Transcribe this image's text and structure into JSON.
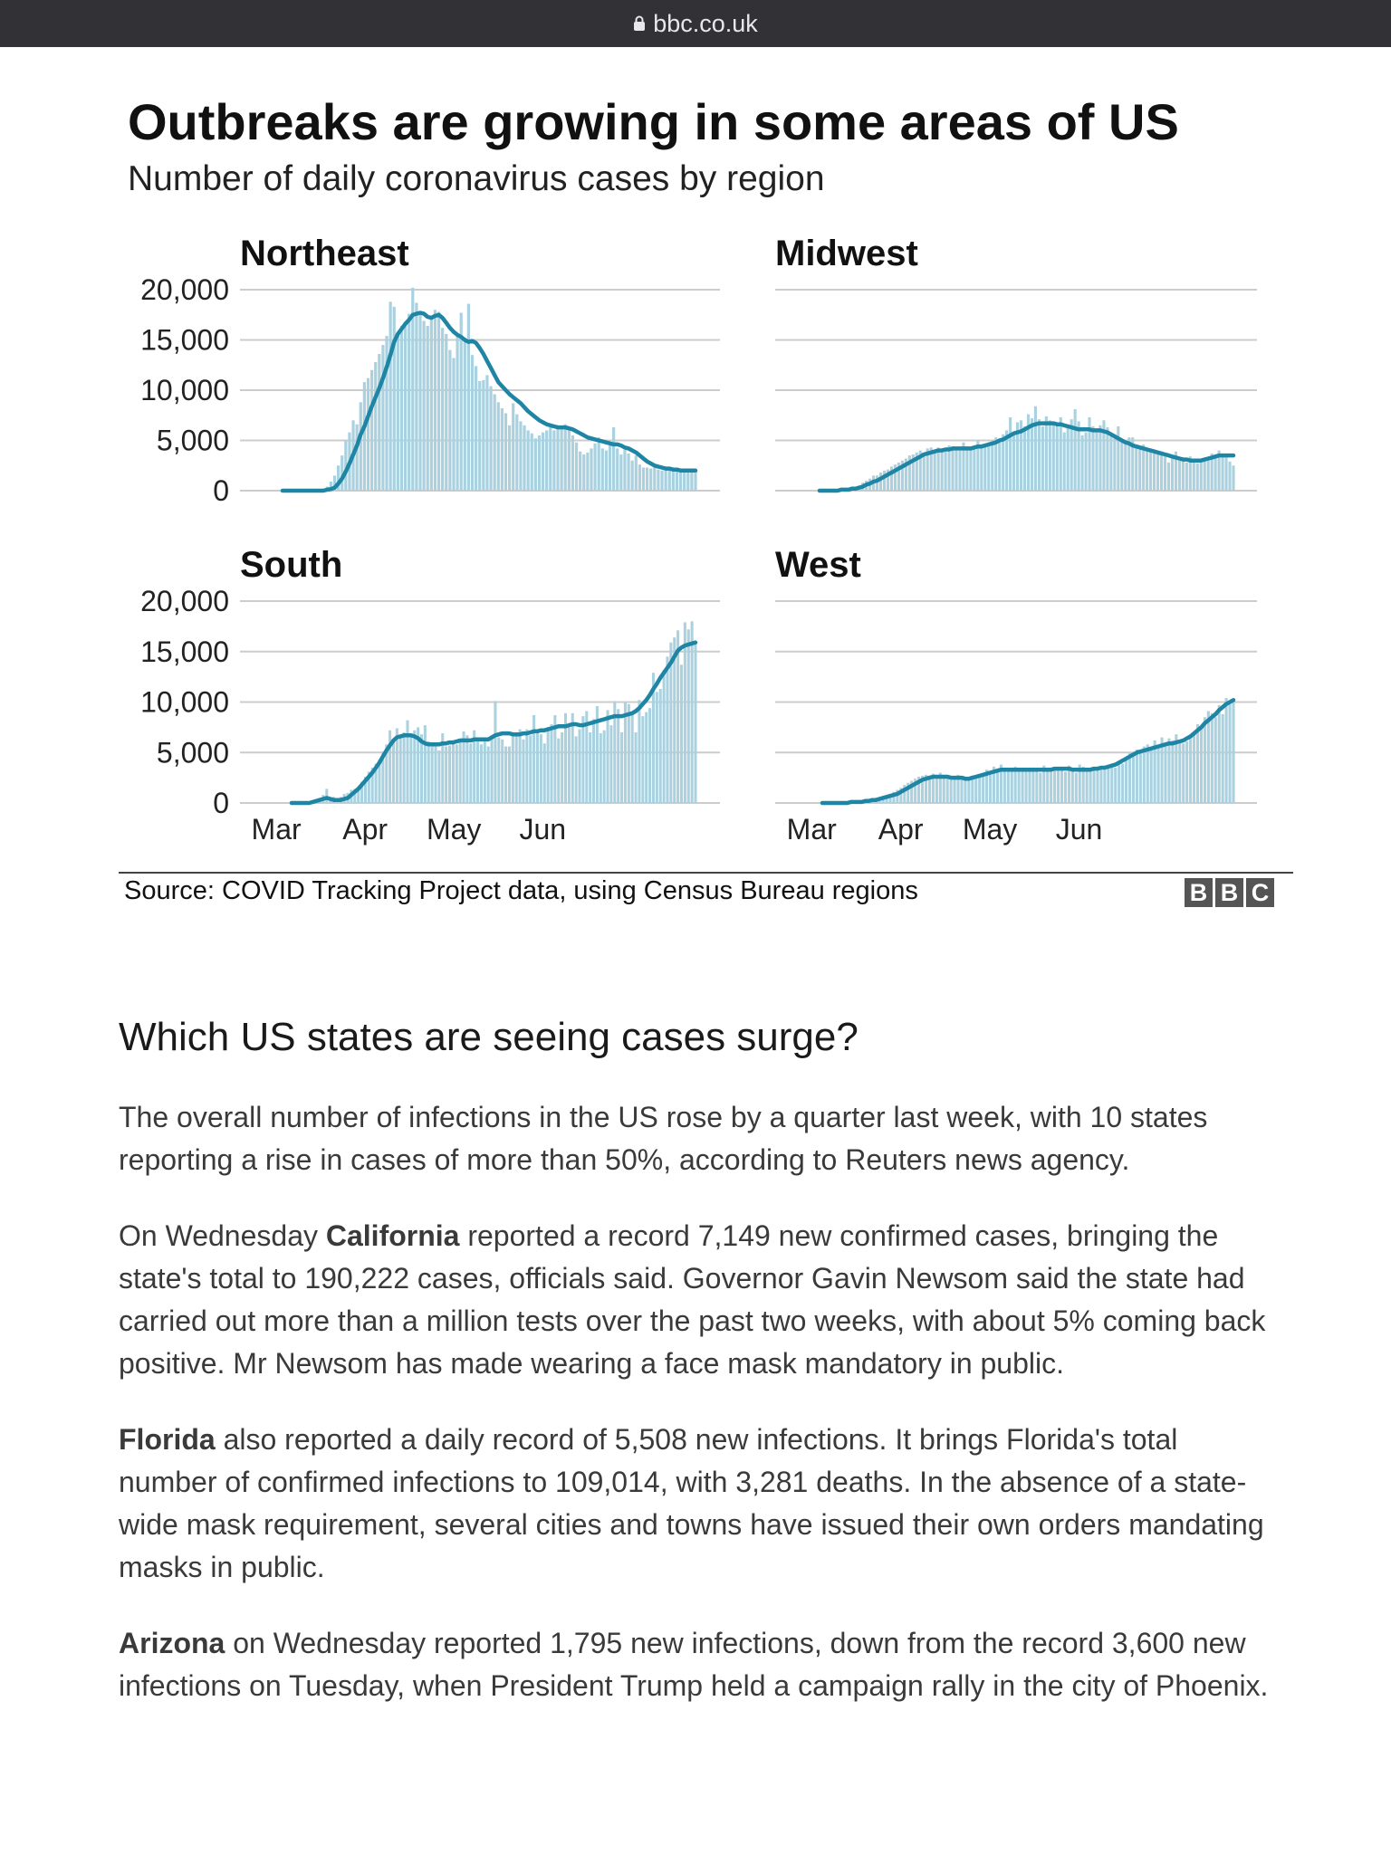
{
  "browser": {
    "url": "bbc.co.uk",
    "lock_icon": "lock-icon"
  },
  "figure": {
    "title": "Outbreaks are growing in some areas of US",
    "subtitle": "Number of daily coronavirus cases by region",
    "source": "Source: COVID Tracking Project data, using Census Bureau regions",
    "logo_letters": [
      "B",
      "B",
      "C"
    ]
  },
  "colors": {
    "bar": "#a9d1df",
    "line": "#1f85a4",
    "grid": "#cccccc",
    "text": "#222222"
  },
  "chart_data": [
    {
      "type": "bar",
      "title": "Northeast",
      "xlabel": "",
      "ylabel": "",
      "ylim": [
        0,
        20000
      ],
      "yticks": [
        "20,000",
        "15,000",
        "10,000",
        "5,000",
        "0"
      ],
      "x_ticks": [],
      "grid": true,
      "series": [
        {
          "kind": "daily bars",
          "values": [
            0,
            0,
            0,
            0,
            0,
            0,
            0,
            0,
            0,
            0,
            100,
            200,
            400,
            900,
            1500,
            2500,
            3500,
            5000,
            5800,
            7000,
            6600,
            8800,
            10800,
            11200,
            12000,
            12800,
            13600,
            14500,
            15400,
            18800,
            18300,
            15500,
            16400,
            16800,
            17600,
            20200,
            18700,
            17800,
            16900,
            16400,
            17100,
            18000,
            17800,
            16200,
            15600,
            14000,
            13200,
            15400,
            17700,
            15200,
            18600,
            13500,
            12400,
            10900,
            11000,
            11500,
            10400,
            9600,
            8800,
            8200,
            7700,
            6500,
            8700,
            7600,
            6900,
            6500,
            6000,
            5700,
            5200,
            5500,
            5800,
            6000,
            6300,
            6000,
            6300,
            6100,
            6600,
            6100,
            5500,
            4800,
            3900,
            3600,
            3800,
            4200,
            4700,
            5300,
            4200,
            4000,
            4500,
            6300,
            4200,
            3600,
            4100,
            3700,
            3000,
            3500,
            2600,
            2300,
            2300,
            2200,
            2300,
            2100,
            2000,
            2100,
            2100,
            2000,
            1900,
            1900,
            2000,
            1800,
            2000,
            2100
          ]
        },
        {
          "kind": "7-day average",
          "values": [
            0,
            0,
            0,
            0,
            0,
            0,
            0,
            0,
            0,
            0,
            0,
            0,
            100,
            150,
            300,
            700,
            1200,
            1900,
            2700,
            3600,
            4500,
            5600,
            6400,
            7400,
            8400,
            9300,
            10200,
            11200,
            12300,
            13500,
            14800,
            15600,
            16100,
            16600,
            17000,
            17500,
            17600,
            17700,
            17600,
            17300,
            17200,
            17400,
            17500,
            17200,
            16700,
            16200,
            15800,
            15500,
            15300,
            15000,
            14800,
            14900,
            14700,
            14200,
            13600,
            12900,
            12200,
            11500,
            10800,
            10400,
            10000,
            9600,
            9300,
            9000,
            8700,
            8300,
            7900,
            7600,
            7300,
            7000,
            6800,
            6600,
            6500,
            6400,
            6300,
            6300,
            6300,
            6200,
            6100,
            5900,
            5700,
            5500,
            5300,
            5200,
            5100,
            5000,
            4900,
            4800,
            4700,
            4600,
            4600,
            4500,
            4300,
            4200,
            4000,
            3800,
            3500,
            3200,
            2900,
            2700,
            2500,
            2400,
            2300,
            2200,
            2200,
            2100,
            2100,
            2000,
            2000,
            2000,
            2000,
            2000
          ]
        }
      ]
    },
    {
      "type": "bar",
      "title": "Midwest",
      "xlabel": "",
      "ylabel": "",
      "ylim": [
        0,
        20000
      ],
      "x_ticks": [],
      "grid": true,
      "series": [
        {
          "kind": "daily bars",
          "values": [
            0,
            0,
            0,
            0,
            0,
            100,
            100,
            200,
            300,
            400,
            300,
            500,
            800,
            1000,
            1200,
            1500,
            1500,
            1800,
            2000,
            2100,
            2400,
            2600,
            2800,
            3000,
            3200,
            3500,
            3600,
            3800,
            4000,
            3800,
            4200,
            4300,
            4100,
            4300,
            4200,
            3900,
            4500,
            4400,
            4300,
            4000,
            4800,
            4400,
            4300,
            4100,
            5000,
            4600,
            4500,
            4700,
            4800,
            5300,
            5100,
            5600,
            6000,
            7300,
            5600,
            6800,
            7000,
            6400,
            7600,
            7200,
            8400,
            7100,
            6400,
            7400,
            7000,
            6600,
            6800,
            7300,
            5800,
            6600,
            7100,
            8100,
            6900,
            5500,
            5800,
            7300,
            6400,
            6100,
            6500,
            7000,
            6300,
            5800,
            5600,
            6400,
            5100,
            4900,
            5300,
            5300,
            4400,
            4100,
            4600,
            4000,
            4100,
            3800,
            3600,
            3900,
            3400,
            2800,
            3500,
            3900,
            3000,
            3300,
            2800,
            3400,
            3100,
            2700,
            3000,
            3000,
            3200,
            3700,
            3300,
            4000,
            3700,
            3300,
            2900,
            2500
          ]
        },
        {
          "kind": "7-day average",
          "values": [
            0,
            0,
            0,
            0,
            0,
            0,
            100,
            100,
            100,
            200,
            200,
            300,
            400,
            600,
            700,
            900,
            1000,
            1200,
            1400,
            1600,
            1800,
            2000,
            2200,
            2400,
            2600,
            2800,
            3000,
            3200,
            3400,
            3600,
            3700,
            3800,
            3900,
            4000,
            4000,
            4100,
            4100,
            4200,
            4200,
            4200,
            4200,
            4200,
            4200,
            4300,
            4400,
            4400,
            4500,
            4600,
            4700,
            4800,
            5000,
            5100,
            5300,
            5500,
            5700,
            5800,
            5900,
            6100,
            6300,
            6500,
            6600,
            6700,
            6700,
            6700,
            6700,
            6700,
            6600,
            6600,
            6500,
            6400,
            6300,
            6200,
            6100,
            6100,
            6100,
            6100,
            6000,
            6000,
            6000,
            5900,
            5800,
            5600,
            5400,
            5200,
            5000,
            4800,
            4700,
            4500,
            4400,
            4300,
            4200,
            4100,
            4000,
            3900,
            3800,
            3700,
            3600,
            3500,
            3400,
            3300,
            3200,
            3100,
            3100,
            3000,
            3000,
            3000,
            3000,
            3100,
            3200,
            3300,
            3400,
            3500,
            3500,
            3500,
            3500,
            3500
          ]
        }
      ]
    },
    {
      "type": "bar",
      "title": "South",
      "xlabel": "",
      "ylabel": "",
      "ylim": [
        0,
        20000
      ],
      "yticks": [
        "20,000",
        "15,000",
        "10,000",
        "5,000",
        "0"
      ],
      "x_ticks": [
        "Mar",
        "Apr",
        "May",
        "Jun"
      ],
      "grid": true,
      "series": [
        {
          "kind": "daily bars",
          "values": [
            0,
            0,
            0,
            0,
            0,
            100,
            200,
            300,
            500,
            800,
            1400,
            400,
            600,
            300,
            600,
            900,
            1000,
            1300,
            1400,
            1600,
            2100,
            2600,
            3100,
            3500,
            3900,
            4300,
            5100,
            5800,
            7200,
            6100,
            7400,
            6600,
            7000,
            8200,
            6700,
            7200,
            7500,
            6800,
            7700,
            6100,
            5600,
            5900,
            5200,
            6900,
            5600,
            5700,
            6000,
            5800,
            6100,
            7100,
            6700,
            5900,
            7200,
            6300,
            5800,
            6400,
            5600,
            6500,
            10100,
            6500,
            6300,
            5600,
            5600,
            6700,
            6800,
            7300,
            6300,
            7300,
            6700,
            8700,
            7000,
            6800,
            5900,
            7500,
            7800,
            8700,
            6400,
            7000,
            8900,
            7500,
            8900,
            6600,
            7300,
            8600,
            9100,
            7000,
            8300,
            9600,
            6900,
            7200,
            9200,
            7700,
            10100,
            9300,
            7000,
            10000,
            9800,
            8800,
            7000,
            10200,
            8600,
            9000,
            9400,
            12900,
            11000,
            11300,
            13200,
            14500,
            15900,
            16400,
            17100,
            13700,
            17900,
            17200,
            18000,
            16000
          ]
        },
        {
          "kind": "7-day average",
          "values": [
            0,
            0,
            0,
            0,
            0,
            0,
            100,
            200,
            300,
            400,
            500,
            400,
            300,
            300,
            300,
            400,
            500,
            800,
            1100,
            1400,
            1800,
            2200,
            2600,
            3000,
            3500,
            4000,
            4600,
            5200,
            5700,
            6200,
            6500,
            6600,
            6700,
            6700,
            6700,
            6600,
            6400,
            6100,
            5900,
            5800,
            5800,
            5800,
            5800,
            5900,
            5900,
            6000,
            6000,
            6100,
            6200,
            6200,
            6200,
            6200,
            6300,
            6300,
            6300,
            6300,
            6300,
            6500,
            6700,
            6800,
            6900,
            6900,
            6900,
            6800,
            6800,
            6800,
            6900,
            6900,
            7000,
            7100,
            7100,
            7200,
            7200,
            7300,
            7400,
            7500,
            7600,
            7600,
            7600,
            7700,
            7800,
            7800,
            7700,
            7700,
            7800,
            7900,
            8000,
            8100,
            8200,
            8300,
            8400,
            8500,
            8600,
            8600,
            8600,
            8700,
            8800,
            8900,
            9100,
            9400,
            9800,
            10200,
            10700,
            11300,
            11800,
            12400,
            12900,
            13400,
            13900,
            14500,
            15100,
            15400,
            15600,
            15700,
            15800,
            15900
          ]
        }
      ]
    },
    {
      "type": "bar",
      "title": "West",
      "xlabel": "",
      "ylabel": "",
      "ylim": [
        0,
        20000
      ],
      "x_ticks": [
        "Mar",
        "Apr",
        "May",
        "Jun"
      ],
      "grid": true,
      "series": [
        {
          "kind": "daily bars",
          "values": [
            0,
            0,
            0,
            0,
            0,
            0,
            0,
            100,
            100,
            100,
            200,
            200,
            300,
            400,
            400,
            500,
            600,
            700,
            800,
            900,
            1100,
            1300,
            1500,
            1800,
            2000,
            2200,
            2400,
            2600,
            2700,
            2800,
            2600,
            2900,
            2700,
            3000,
            2600,
            2400,
            2300,
            2500,
            2800,
            2500,
            2300,
            2400,
            2700,
            2500,
            2800,
            2900,
            3300,
            3000,
            3600,
            3400,
            3800,
            3200,
            3300,
            3400,
            3600,
            3200,
            3300,
            3100,
            3500,
            3200,
            3400,
            3000,
            3700,
            3200,
            3400,
            3300,
            3500,
            3300,
            3100,
            3700,
            3400,
            3000,
            3800,
            3600,
            3400,
            3200,
            3300,
            3500,
            3300,
            3600,
            3400,
            3700,
            3500,
            3800,
            3900,
            4300,
            5000,
            4600,
            5300,
            5100,
            5600,
            5800,
            5300,
            6200,
            5700,
            6500,
            5600,
            6400,
            6200,
            6800,
            6000,
            5900,
            6100,
            6400,
            7100,
            7800,
            7600,
            8500,
            9100,
            8900,
            8500,
            9700,
            8800,
            10400,
            9800,
            10300
          ]
        },
        {
          "kind": "7-day average",
          "values": [
            0,
            0,
            0,
            0,
            0,
            0,
            0,
            0,
            100,
            100,
            100,
            100,
            200,
            200,
            300,
            300,
            400,
            500,
            600,
            700,
            800,
            900,
            1100,
            1300,
            1500,
            1700,
            1900,
            2100,
            2300,
            2400,
            2500,
            2600,
            2600,
            2600,
            2600,
            2600,
            2500,
            2500,
            2500,
            2500,
            2400,
            2400,
            2500,
            2600,
            2700,
            2800,
            2900,
            3000,
            3100,
            3200,
            3300,
            3300,
            3300,
            3300,
            3300,
            3300,
            3300,
            3300,
            3300,
            3300,
            3300,
            3300,
            3300,
            3300,
            3300,
            3400,
            3400,
            3400,
            3400,
            3400,
            3300,
            3300,
            3300,
            3300,
            3300,
            3300,
            3400,
            3400,
            3500,
            3500,
            3600,
            3700,
            3800,
            4000,
            4200,
            4400,
            4600,
            4800,
            5000,
            5100,
            5200,
            5300,
            5400,
            5500,
            5600,
            5700,
            5800,
            5900,
            5900,
            6000,
            6100,
            6200,
            6400,
            6600,
            6900,
            7200,
            7500,
            7900,
            8200,
            8500,
            8800,
            9200,
            9500,
            9800,
            10000,
            10200
          ]
        }
      ]
    }
  ],
  "article": {
    "heading": "Which US states are seeing cases surge?",
    "p1": "The overall number of infections in the US rose by a quarter last week, with 10 states reporting a rise in cases of more than 50%, according to Reuters news agency.",
    "p2_lead": "On Wednesday ",
    "p2_bold": "California",
    "p2_rest": " reported a record 7,149 new confirmed cases, bringing the state's total to 190,222 cases, officials said. Governor Gavin Newsom said the state had carried out more than a million tests over the past two weeks, with about 5% coming back positive. Mr Newsom has made wearing a face mask mandatory in public.",
    "p3_bold": "Florida",
    "p3_rest": " also reported a daily record of 5,508 new infections. It brings Florida's total number of confirmed infections to 109,014, with 3,281 deaths. In the absence of a state-wide mask requirement, several cities and towns have issued their own orders mandating masks in public.",
    "p4_bold": "Arizona",
    "p4_rest": " on Wednesday reported 1,795 new infections, down from the record 3,600 new infections on Tuesday, when President Trump held a campaign rally in the city of Phoenix."
  }
}
